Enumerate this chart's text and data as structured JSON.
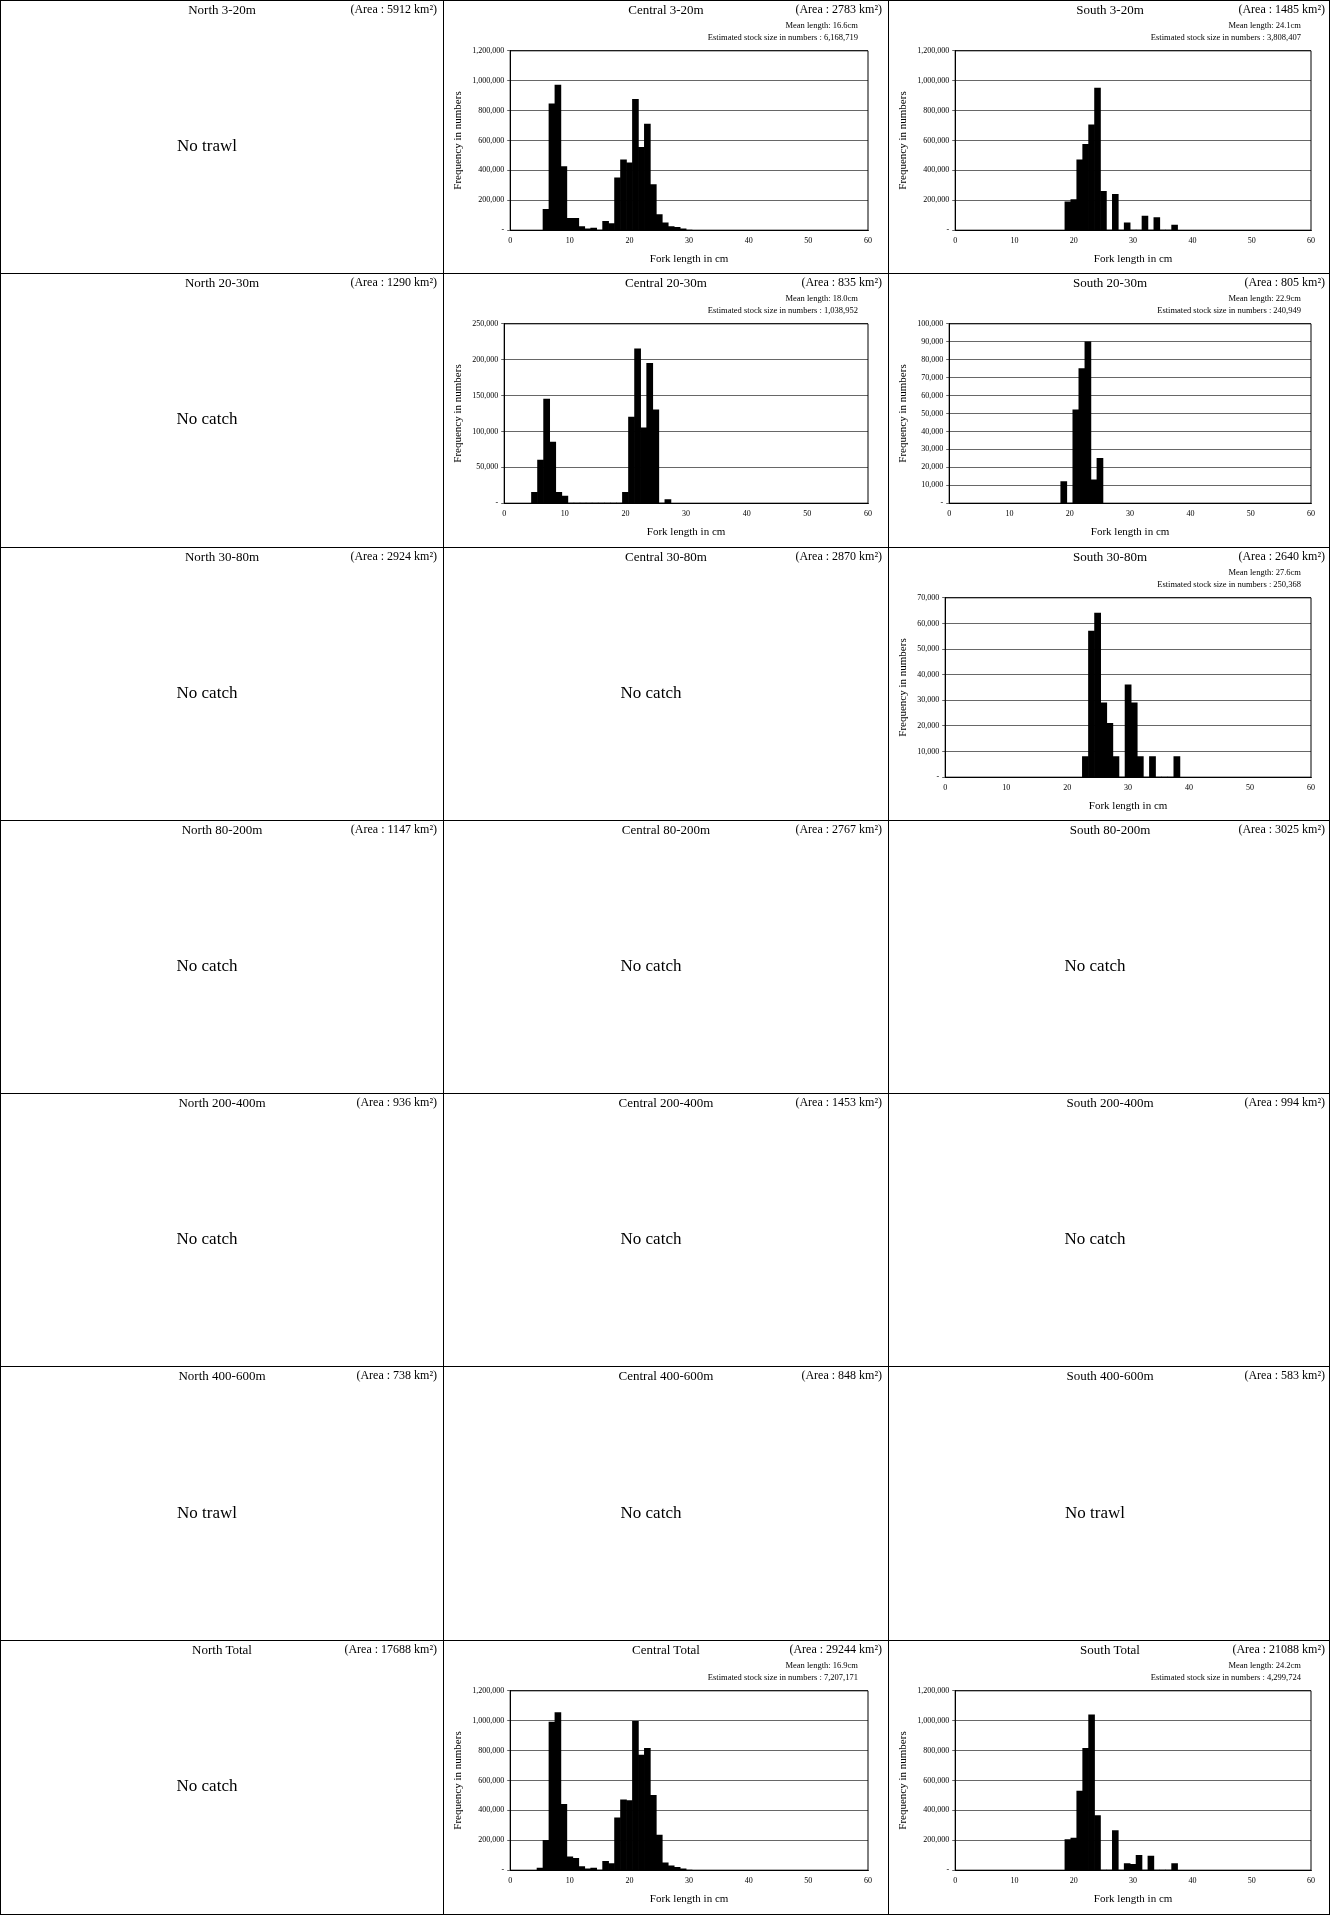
{
  "chart_data": [
    {
      "type": "other",
      "title": "North 3-20m",
      "annotations": [
        "(Area : 5912 km²)",
        "No trawl"
      ]
    },
    {
      "type": "histogram",
      "title": "Central 3-20m",
      "annotations": [
        "(Area : 2783 km²)",
        "Mean length: 16.6cm",
        "Estimated stock size in numbers : 6,168,719"
      ],
      "xlabel": "Fork length in cm",
      "ylabel": "Frequency in numbers",
      "color": "#000000",
      "grid": "y",
      "bins": [
        5.5,
        6.5,
        7.5,
        8.5,
        9.5,
        10.5,
        11.5,
        12.5,
        13.5,
        14.5,
        15.5,
        16.5,
        17.5,
        18.5,
        19.5,
        20.5,
        21.5,
        22.5,
        23.5,
        24.5,
        25.5,
        26.5,
        27.5,
        28.5,
        29.5,
        30.5,
        31.5
      ],
      "values": [
        140000,
        845000,
        970000,
        425000,
        80000,
        80000,
        25000,
        10000,
        15000,
        0,
        60000,
        45000,
        350000,
        470000,
        450000,
        875000,
        555000,
        710000,
        305000,
        105000,
        50000,
        25000,
        20000,
        10000,
        0,
        null
      ],
      "xlim": [
        0,
        60
      ],
      "xticks": [
        0,
        10,
        20,
        30,
        40,
        50,
        60
      ],
      "ylim": [
        0,
        1200000
      ],
      "yticks": [
        {
          "value": 0,
          "label": "-"
        },
        {
          "value": 200000,
          "label": "200,000"
        },
        {
          "value": 400000,
          "label": "400,000"
        },
        {
          "value": 600000,
          "label": "600,000"
        },
        {
          "value": 800000,
          "label": "800,000"
        },
        {
          "value": 1000000,
          "label": "1,000,000"
        },
        {
          "value": 1200000,
          "label": "1,200,000"
        }
      ]
    },
    {
      "type": "histogram",
      "title": "South 3-20m",
      "annotations": [
        "(Area : 1485 km²)",
        "Mean length: 24.1cm",
        "Estimated stock size in numbers : 3,808,407"
      ],
      "xlabel": "Fork length in cm",
      "ylabel": "Frequency in numbers",
      "color": "#000000",
      "grid": "y",
      "bins": [
        18.5,
        19.5,
        20.5,
        21.5,
        22.5,
        23.5,
        24.5,
        25.5,
        26.5,
        27.5,
        28.5,
        29.5,
        30.5,
        31.5,
        32.5,
        33.5,
        34.5,
        35.5,
        36.5,
        37.5
      ],
      "values": [
        190000,
        205000,
        470000,
        575000,
        705000,
        950000,
        260000,
        0,
        240000,
        0,
        50000,
        0,
        0,
        95000,
        0,
        85000,
        0,
        0,
        35000
      ],
      "xlim": [
        0,
        60
      ],
      "xticks": [
        0,
        10,
        20,
        30,
        40,
        50,
        60
      ],
      "ylim": [
        0,
        1200000
      ],
      "yticks": [
        {
          "value": 0,
          "label": "-"
        },
        {
          "value": 200000,
          "label": "200,000"
        },
        {
          "value": 400000,
          "label": "400,000"
        },
        {
          "value": 600000,
          "label": "600,000"
        },
        {
          "value": 800000,
          "label": "800,000"
        },
        {
          "value": 1000000,
          "label": "1,000,000"
        },
        {
          "value": 1200000,
          "label": "1,200,000"
        }
      ]
    },
    {
      "type": "other",
      "title": "North 20-30m",
      "annotations": [
        "(Area : 1290 km²)",
        "No catch"
      ]
    },
    {
      "type": "histogram",
      "title": "Central 20-30m",
      "annotations": [
        "(Area : 835 km²)",
        "Mean length: 18.0cm",
        "Estimated stock size in numbers : 1,038,952"
      ],
      "xlabel": "Fork length in cm",
      "ylabel": "Frequency in numbers",
      "color": "#000000",
      "grid": "y",
      "bins": [
        4.5,
        5.5,
        6.5,
        7.5,
        8.5,
        9.5,
        10.5,
        11.5,
        12.5,
        13.5,
        14.5,
        15.5,
        16.5,
        17.5,
        18.5,
        19.5,
        20.5,
        21.5,
        22.5,
        23.5,
        24.5,
        25.5,
        26.5,
        27.5
      ],
      "values": [
        15000,
        60000,
        145000,
        85000,
        15000,
        10000,
        0,
        0,
        0,
        0,
        0,
        0,
        0,
        0,
        0,
        15000,
        120000,
        215000,
        105000,
        195000,
        130000,
        0,
        5000
      ],
      "xlim": [
        0,
        60
      ],
      "xticks": [
        0,
        10,
        20,
        30,
        40,
        50,
        60
      ],
      "ylim": [
        0,
        250000
      ],
      "yticks": [
        {
          "value": 0,
          "label": "-"
        },
        {
          "value": 50000,
          "label": "50,000"
        },
        {
          "value": 100000,
          "label": "100,000"
        },
        {
          "value": 150000,
          "label": "150,000"
        },
        {
          "value": 200000,
          "label": "200,000"
        },
        {
          "value": 250000,
          "label": "250,000"
        }
      ]
    },
    {
      "type": "histogram",
      "title": "South 20-30m",
      "annotations": [
        "(Area : 805 km²)",
        "Mean length: 22.9cm",
        "Estimated stock size in numbers : 240,949"
      ],
      "xlabel": "Fork length in cm",
      "ylabel": "Frequency in numbers",
      "color": "#000000",
      "grid": "y",
      "bins": [
        18.5,
        19.5,
        20.5,
        21.5,
        22.5,
        23.5,
        24.5,
        25.5
      ],
      "values": [
        12000,
        0,
        52000,
        75000,
        90000,
        13000,
        25000
      ],
      "xlim": [
        0,
        60
      ],
      "xticks": [
        0,
        10,
        20,
        30,
        40,
        50,
        60
      ],
      "ylim": [
        0,
        100000
      ],
      "yticks": [
        {
          "value": 0,
          "label": "-"
        },
        {
          "value": 10000,
          "label": "10,000"
        },
        {
          "value": 20000,
          "label": "20,000"
        },
        {
          "value": 30000,
          "label": "30,000"
        },
        {
          "value": 40000,
          "label": "40,000"
        },
        {
          "value": 50000,
          "label": "50,000"
        },
        {
          "value": 60000,
          "label": "60,000"
        },
        {
          "value": 70000,
          "label": "70,000"
        },
        {
          "value": 80000,
          "label": "80,000"
        },
        {
          "value": 90000,
          "label": "90,000"
        },
        {
          "value": 100000,
          "label": "100,000"
        }
      ]
    },
    {
      "type": "other",
      "title": "North 30-80m",
      "annotations": [
        "(Area : 2924 km²)",
        "No catch"
      ]
    },
    {
      "type": "other",
      "title": "Central 30-80m",
      "annotations": [
        "(Area : 2870 km²)",
        "No catch"
      ]
    },
    {
      "type": "histogram",
      "title": "South 30-80m",
      "annotations": [
        "(Area : 2640 km²)",
        "Mean length: 27.6cm",
        "Estimated stock size in numbers : 250,368"
      ],
      "xlabel": "Fork length in cm",
      "ylabel": "Frequency in numbers",
      "color": "#000000",
      "grid": "y",
      "bins": [
        22.5,
        23.5,
        24.5,
        25.5,
        26.5,
        27.5,
        28.5,
        29.5,
        30.5,
        31.5,
        32.5,
        33.5,
        34.5,
        35.5,
        36.5,
        37.5,
        38.5
      ],
      "values": [
        8000,
        57000,
        64000,
        29000,
        21000,
        8000,
        0,
        36000,
        29000,
        8000,
        0,
        8000,
        0,
        0,
        0,
        8000
      ],
      "xlim": [
        0,
        60
      ],
      "xticks": [
        0,
        10,
        20,
        30,
        40,
        50,
        60
      ],
      "ylim": [
        0,
        70000
      ],
      "yticks": [
        {
          "value": 0,
          "label": "-"
        },
        {
          "value": 10000,
          "label": "10,000"
        },
        {
          "value": 20000,
          "label": "20,000"
        },
        {
          "value": 30000,
          "label": "30,000"
        },
        {
          "value": 40000,
          "label": "40,000"
        },
        {
          "value": 50000,
          "label": "50,000"
        },
        {
          "value": 60000,
          "label": "60,000"
        },
        {
          "value": 70000,
          "label": "70,000"
        }
      ]
    },
    {
      "type": "other",
      "title": "North 80-200m",
      "annotations": [
        "(Area : 1147 km²)",
        "No catch"
      ]
    },
    {
      "type": "other",
      "title": "Central 80-200m",
      "annotations": [
        "(Area : 2767 km²)",
        "No catch"
      ]
    },
    {
      "type": "other",
      "title": "South 80-200m",
      "annotations": [
        "(Area : 3025 km²)",
        "No catch"
      ]
    },
    {
      "type": "other",
      "title": "North 200-400m",
      "annotations": [
        "(Area : 936 km²)",
        "No catch"
      ]
    },
    {
      "type": "other",
      "title": "Central 200-400m",
      "annotations": [
        "(Area : 1453 km²)",
        "No catch"
      ]
    },
    {
      "type": "other",
      "title": "South 200-400m",
      "annotations": [
        "(Area : 994 km²)",
        "No catch"
      ]
    },
    {
      "type": "other",
      "title": "North 400-600m",
      "annotations": [
        "(Area : 738 km²)",
        "No trawl"
      ]
    },
    {
      "type": "other",
      "title": "Central 400-600m",
      "annotations": [
        "(Area : 848 km²)",
        "No catch"
      ]
    },
    {
      "type": "other",
      "title": "South 400-600m",
      "annotations": [
        "(Area : 583 km²)",
        "No trawl"
      ]
    },
    {
      "type": "other",
      "title": "North Total",
      "annotations": [
        "(Area : 17688 km²)",
        "No catch"
      ]
    },
    {
      "type": "histogram",
      "title": "Central Total",
      "annotations": [
        "(Area : 29244 km²)",
        "Mean length: 16.9cm",
        "Estimated stock size in numbers : 7,207,171"
      ],
      "xlabel": "Fork length in cm",
      "ylabel": "Frequency in numbers",
      "color": "#000000",
      "grid": "y",
      "bins": [
        4.5,
        5.5,
        6.5,
        7.5,
        8.5,
        9.5,
        10.5,
        11.5,
        12.5,
        13.5,
        14.5,
        15.5,
        16.5,
        17.5,
        18.5,
        19.5,
        20.5,
        21.5,
        22.5,
        23.5,
        24.5,
        25.5,
        26.5,
        27.5,
        28.5,
        29.5,
        30.5,
        31.5
      ],
      "values": [
        15000,
        200000,
        990000,
        1055000,
        440000,
        90000,
        80000,
        25000,
        10000,
        15000,
        0,
        60000,
        45000,
        350000,
        470000,
        465000,
        995000,
        770000,
        815000,
        500000,
        235000,
        50000,
        30000,
        20000,
        10000,
        0,
        null
      ],
      "xlim": [
        0,
        60
      ],
      "xticks": [
        0,
        10,
        20,
        30,
        40,
        50,
        60
      ],
      "ylim": [
        0,
        1200000
      ],
      "yticks": [
        {
          "value": 0,
          "label": "-"
        },
        {
          "value": 200000,
          "label": "200,000"
        },
        {
          "value": 400000,
          "label": "400,000"
        },
        {
          "value": 600000,
          "label": "600,000"
        },
        {
          "value": 800000,
          "label": "800,000"
        },
        {
          "value": 1000000,
          "label": "1,000,000"
        },
        {
          "value": 1200000,
          "label": "1,200,000"
        }
      ]
    },
    {
      "type": "histogram",
      "title": "South Total",
      "annotations": [
        "(Area : 21088 km²)",
        "Mean length: 24.2cm",
        "Estimated stock size in numbers : 4,299,724"
      ],
      "xlabel": "Fork length in cm",
      "ylabel": "Frequency in numbers",
      "color": "#000000",
      "grid": "y",
      "bins": [
        18.5,
        19.5,
        20.5,
        21.5,
        22.5,
        23.5,
        24.5,
        25.5,
        26.5,
        27.5,
        28.5,
        29.5,
        30.5,
        31.5,
        32.5,
        33.5,
        34.5,
        35.5,
        36.5,
        37.5
      ],
      "values": [
        205000,
        215000,
        530000,
        815000,
        1040000,
        365000,
        0,
        0,
        265000,
        0,
        45000,
        40000,
        100000,
        0,
        95000,
        0,
        0,
        0,
        45000
      ],
      "xlim": [
        0,
        60
      ],
      "xticks": [
        0,
        10,
        20,
        30,
        40,
        50,
        60
      ],
      "ylim": [
        0,
        1200000
      ],
      "yticks": [
        {
          "value": 0,
          "label": "-"
        },
        {
          "value": 200000,
          "label": "200,000"
        },
        {
          "value": 400000,
          "label": "400,000"
        },
        {
          "value": 600000,
          "label": "600,000"
        },
        {
          "value": 800000,
          "label": "800,000"
        },
        {
          "value": 1000000,
          "label": "1,000,000"
        },
        {
          "value": 1200000,
          "label": "1,200,000"
        }
      ]
    }
  ]
}
